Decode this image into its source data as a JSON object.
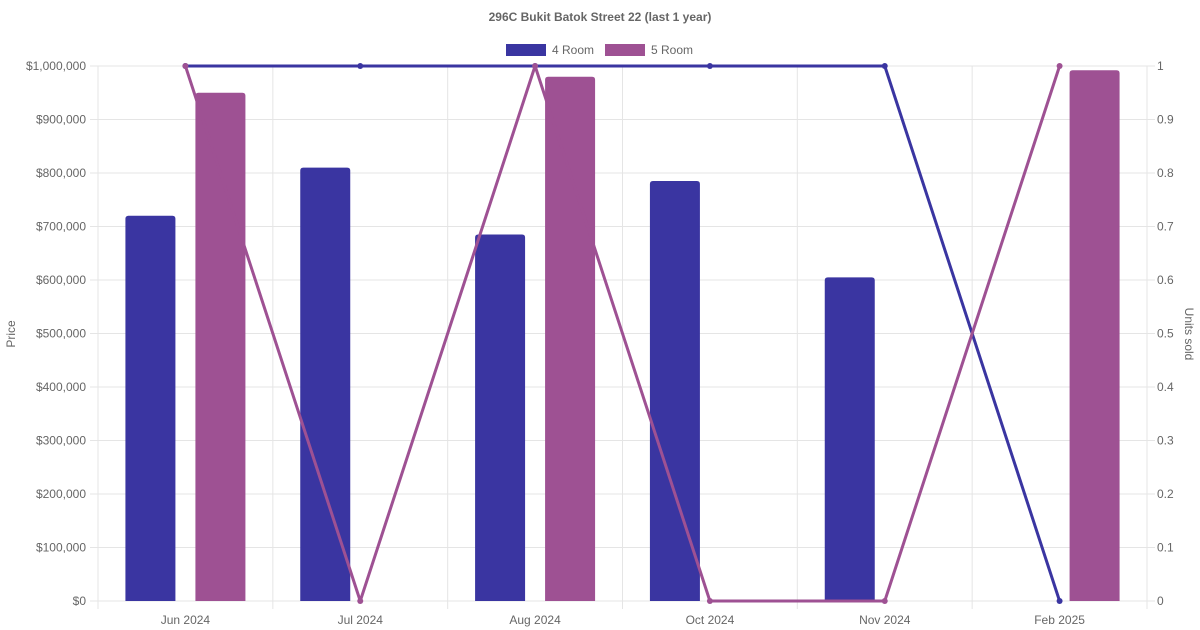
{
  "chart_data": {
    "type": "bar",
    "title": "296C Bukit Batok Street 22 (last 1 year)",
    "categories": [
      "Jun 2024",
      "Jul 2024",
      "Aug 2024",
      "Oct 2024",
      "Nov 2024",
      "Feb 2025"
    ],
    "ylabel": "Price",
    "y2label": "Units sold",
    "ylim": [
      0,
      1000000
    ],
    "y2lim": [
      0,
      1
    ],
    "y_ticks": [
      "$0",
      "$100,000",
      "$200,000",
      "$300,000",
      "$400,000",
      "$500,000",
      "$600,000",
      "$700,000",
      "$800,000",
      "$900,000",
      "$1,000,000"
    ],
    "y2_ticks": [
      "0",
      "0.1",
      "0.2",
      "0.3",
      "0.4",
      "0.5",
      "0.6",
      "0.7",
      "0.8",
      "0.9",
      "1"
    ],
    "grid": true,
    "legend_position": "top",
    "series": [
      {
        "name": "4 Room",
        "color": "#3a35a1",
        "price": [
          720000,
          810000,
          685000,
          785000,
          605000,
          null
        ],
        "units_sold": [
          1,
          1,
          1,
          1,
          1,
          0
        ]
      },
      {
        "name": "5 Room",
        "color": "#9e5193",
        "price": [
          950000,
          null,
          980000,
          null,
          null,
          992000
        ],
        "units_sold": [
          1,
          0,
          1,
          0,
          0,
          1
        ]
      }
    ]
  }
}
